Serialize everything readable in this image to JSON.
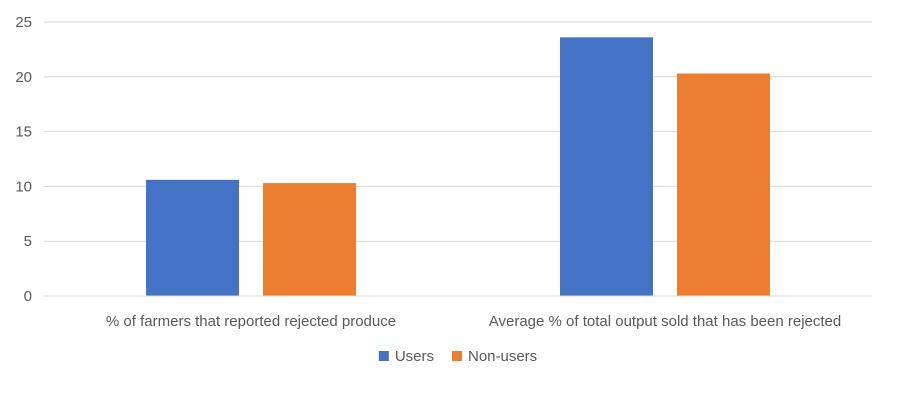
{
  "chart_data": {
    "type": "bar",
    "categories": [
      "% of farmers that reported rejected produce",
      "Average % of total output sold that has been rejected"
    ],
    "series": [
      {
        "name": "Users",
        "values": [
          10.6,
          23.6
        ],
        "color": "#4472C4"
      },
      {
        "name": "Non-users",
        "values": [
          10.3,
          20.3
        ],
        "color": "#ED7D31"
      }
    ],
    "ylim": [
      0,
      25
    ],
    "yticks": [
      0,
      5,
      10,
      15,
      20,
      25
    ],
    "grid": true,
    "legend_position": "bottom"
  }
}
